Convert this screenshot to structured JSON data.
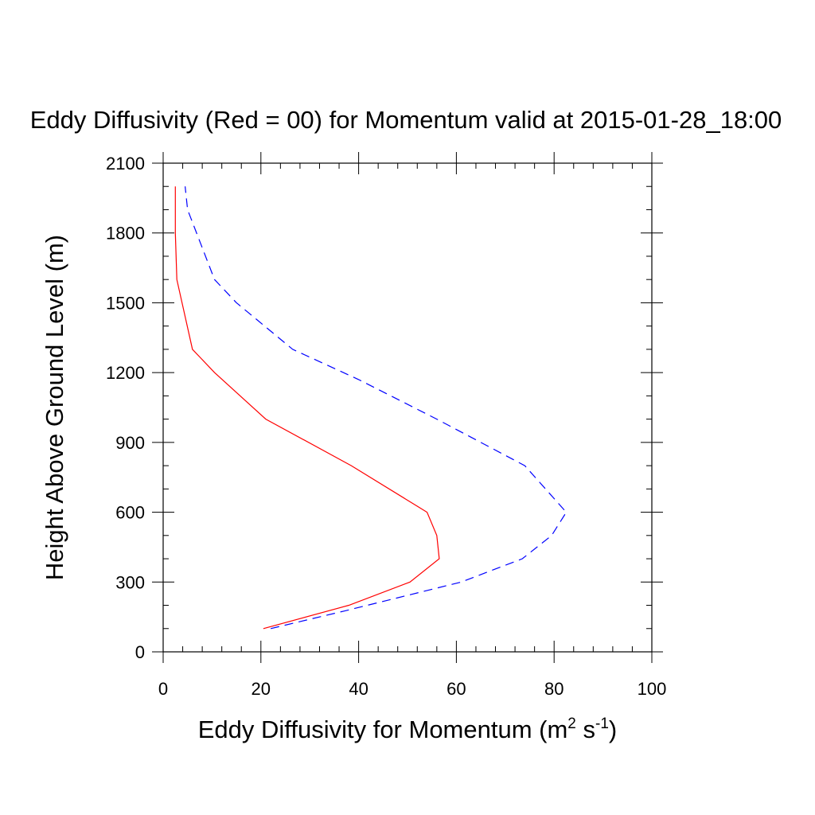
{
  "chart_data": {
    "type": "line",
    "title": "Eddy Diffusivity (Red = 00) for Momentum valid at 2015-01-28_18:00",
    "xlabel": {
      "prefix": "Eddy Diffusivity for Momentum (m",
      "sup1": "2",
      "middle": " s",
      "sup2": "-1",
      "suffix": ")"
    },
    "ylabel": "Height Above Ground Level (m)",
    "xlim": [
      0,
      100
    ],
    "ylim": [
      0,
      2100
    ],
    "xticks": [
      "0",
      "20",
      "40",
      "60",
      "80",
      "100"
    ],
    "yticks": [
      "0",
      "300",
      "600",
      "900",
      "1200",
      "1500",
      "1800",
      "2100"
    ],
    "grid": false,
    "series": [
      {
        "color": "#ff0000",
        "style": "solid",
        "points": [
          [
            20.5,
            100
          ],
          [
            38,
            200
          ],
          [
            50.5,
            300
          ],
          [
            56.5,
            400
          ],
          [
            56,
            500
          ],
          [
            54,
            600
          ],
          [
            38.5,
            800
          ],
          [
            21,
            1000
          ],
          [
            10.5,
            1200
          ],
          [
            6,
            1300
          ],
          [
            2.8,
            1600
          ],
          [
            2.5,
            1800
          ],
          [
            2.5,
            1900
          ],
          [
            2.5,
            2000
          ]
        ]
      },
      {
        "color": "#0000ff",
        "style": "dashed",
        "points": [
          [
            22,
            100
          ],
          [
            37,
            175
          ],
          [
            61,
            300
          ],
          [
            73.5,
            400
          ],
          [
            79.5,
            500
          ],
          [
            82.5,
            600
          ],
          [
            74,
            800
          ],
          [
            56,
            1000
          ],
          [
            40,
            1170
          ],
          [
            26.5,
            1300
          ],
          [
            15,
            1500
          ],
          [
            10.5,
            1600
          ],
          [
            5,
            1900
          ],
          [
            4.5,
            2000
          ]
        ]
      }
    ]
  }
}
